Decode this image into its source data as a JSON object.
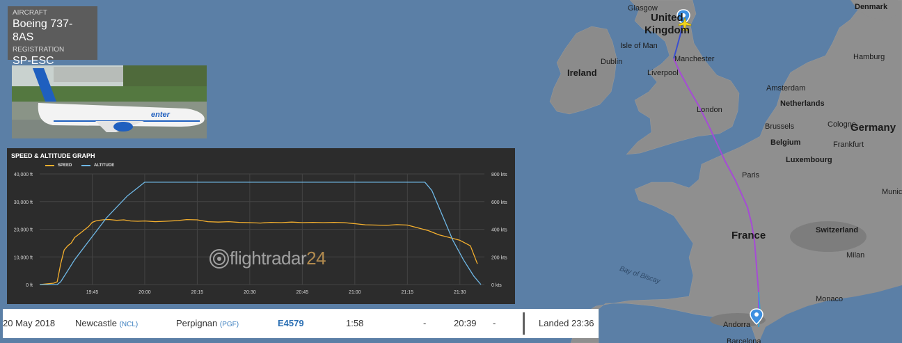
{
  "aircraft": {
    "aircraft_label": "AIRCRAFT",
    "aircraft_value": "Boeing 737-8AS",
    "registration_label": "REGISTRATION",
    "registration_value": "SP-ESC",
    "photo_livery_text": "enter"
  },
  "graph": {
    "title": "SPEED & ALTITUDE GRAPH",
    "legend_speed": "SPEED",
    "legend_altitude": "ALTITUDE",
    "watermark_text": "flightradar",
    "watermark_num": "24",
    "colors": {
      "speed": "#f5b02e",
      "altitude": "#6fb8e6",
      "grid": "#444444",
      "axis_text": "#d8d8d8"
    }
  },
  "chart_data": {
    "type": "line",
    "title": "SPEED & ALTITUDE GRAPH",
    "x_ticks": [
      "19:45",
      "20:00",
      "20:15",
      "20:30",
      "20:45",
      "21:00",
      "21:15",
      "21:30"
    ],
    "y_left_ticks": [
      "0 ft",
      "10,000 ft",
      "20,000 ft",
      "30,000 ft",
      "40,000 ft"
    ],
    "y_right_ticks": [
      "0 kts",
      "200 kts",
      "400 kts",
      "600 kts",
      "800 kts"
    ],
    "xlim_minutes": [
      1170,
      1297
    ],
    "ylim_left_ft": [
      0,
      40000
    ],
    "ylim_right_kts": [
      0,
      800
    ],
    "grid": true,
    "legend_position": "top-left",
    "series": [
      {
        "name": "SPEED",
        "axis": "right",
        "unit": "kts",
        "x_minutes": [
          1170,
          1174,
          1175,
          1176,
          1177,
          1178,
          1179,
          1180,
          1181,
          1182,
          1183,
          1184,
          1185,
          1186,
          1187,
          1188,
          1189,
          1190,
          1192,
          1194,
          1196,
          1198,
          1200,
          1203,
          1206,
          1209,
          1212,
          1215,
          1218,
          1221,
          1224,
          1227,
          1230,
          1233,
          1236,
          1239,
          1242,
          1245,
          1248,
          1251,
          1254,
          1257,
          1260,
          1263,
          1266,
          1269,
          1272,
          1275,
          1278,
          1281,
          1284,
          1287,
          1290,
          1293,
          1295
        ],
        "values": [
          0,
          10,
          20,
          150,
          250,
          280,
          300,
          340,
          360,
          380,
          400,
          420,
          450,
          460,
          465,
          468,
          470,
          470,
          465,
          468,
          460,
          458,
          460,
          455,
          458,
          462,
          470,
          468,
          455,
          452,
          455,
          450,
          448,
          445,
          450,
          448,
          452,
          448,
          450,
          448,
          450,
          448,
          440,
          432,
          430,
          428,
          433,
          430,
          410,
          390,
          360,
          340,
          320,
          280,
          150
        ]
      },
      {
        "name": "ALTITUDE",
        "axis": "left",
        "unit": "ft",
        "x_minutes": [
          1170,
          1175,
          1176,
          1178,
          1180,
          1183,
          1186,
          1189,
          1192,
          1195,
          1198,
          1200,
          1210,
          1230,
          1250,
          1270,
          1280,
          1282,
          1285,
          1288,
          1291,
          1294,
          1296
        ],
        "values": [
          0,
          0,
          1000,
          5000,
          9000,
          14000,
          19000,
          24000,
          28000,
          32000,
          35000,
          37000,
          37000,
          37000,
          37000,
          37000,
          37000,
          34000,
          25000,
          16000,
          9000,
          3000,
          0
        ]
      }
    ]
  },
  "flight_row": {
    "date": "20 May 2018",
    "from_city": "Newcastle",
    "from_code": "(NCL)",
    "to_city": "Perpignan",
    "to_code": "(PGF)",
    "flight_number": "E4579",
    "duration": "1:58",
    "std": "-",
    "atd": "20:39",
    "sta": "-",
    "status": "Landed 23:36"
  },
  "map": {
    "labels": {
      "glasgow": "Glasgow",
      "united_kingdom_1": "United",
      "united_kingdom_2": "Kingdom",
      "isle_of_man": "Isle of Man",
      "manchester": "Manchester",
      "liverpool": "Liverpool",
      "ireland": "Ireland",
      "dublin": "Dublin",
      "london": "London",
      "amsterdam": "Amsterdam",
      "netherlands": "Netherlands",
      "hamburg": "Hamburg",
      "denmark": "Denmark",
      "brussels": "Brussels",
      "belgium": "Belgium",
      "cologne": "Cologne",
      "germany": "Germany",
      "frankfurt": "Frankfurt",
      "luxembourg": "Luxembourg",
      "paris": "Paris",
      "france": "France",
      "switzerland": "Switzerland",
      "munich": "Munic",
      "milan": "Milan",
      "monaco": "Monaco",
      "bay_of_biscay": "Bay of Biscay",
      "andorra": "Andorra",
      "barcelona": "Barcelona"
    },
    "colors": {
      "sea": "#5b7fa6",
      "land": "#8c8c8c",
      "route": "#a64bd6",
      "route_start": "#3a4fd0",
      "marker": "#3d8fe0",
      "plane": "#f2d41c"
    }
  }
}
